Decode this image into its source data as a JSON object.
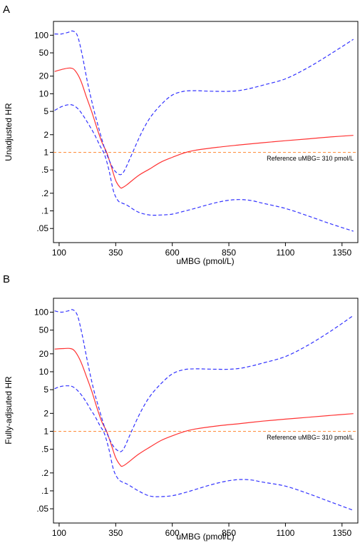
{
  "chart_data": [
    {
      "type": "line",
      "panel_label": "A",
      "xlabel": "uMBG (pmol/L)",
      "ylabel": "Unadjusted HR",
      "y_scale": "log",
      "xlim": [
        75,
        1420
      ],
      "ylim": [
        0.038,
        130
      ],
      "x_ticks": [
        100,
        350,
        600,
        850,
        1100,
        1350
      ],
      "x_tick_labels": [
        "100",
        "350",
        "600",
        "850",
        "1100",
        "1350"
      ],
      "y_ticks": [
        0.05,
        0.1,
        0.2,
        0.5,
        1,
        2,
        5,
        10,
        20,
        50,
        100
      ],
      "y_tick_labels": [
        ".05",
        ".1",
        ".2",
        ".5",
        "1",
        "2",
        "5",
        "10",
        "20",
        "50",
        "100"
      ],
      "reference_line": {
        "y": 1,
        "label": "Reference uMBG= 310 pmol/L",
        "color": "#ff8c3a",
        "style": "dashed"
      },
      "grid": false,
      "series": [
        {
          "role": "estimate",
          "color": "#ff3333",
          "style": "solid",
          "x": [
            80,
            120,
            150,
            170,
            195,
            220,
            245,
            270,
            290,
            310,
            330,
            350,
            370,
            380,
            400,
            450,
            500,
            550,
            600,
            650,
            700,
            800,
            900,
            1000,
            1100,
            1200,
            1300,
            1400
          ],
          "y": [
            24,
            26.5,
            27.5,
            25,
            17,
            9,
            4.8,
            2.4,
            1.45,
            1,
            0.58,
            0.33,
            0.25,
            0.25,
            0.28,
            0.4,
            0.52,
            0.68,
            0.82,
            0.97,
            1.08,
            1.22,
            1.34,
            1.46,
            1.58,
            1.7,
            1.83,
            1.95
          ]
        },
        {
          "role": "upper 95% CI",
          "color": "#3333ff",
          "style": "dashed",
          "x": [
            80,
            110,
            140,
            160,
            180,
            200,
            225,
            250,
            275,
            300,
            320,
            340,
            360,
            375,
            390,
            420,
            460,
            500,
            550,
            600,
            650,
            700,
            750,
            800,
            850,
            900,
            950,
            1000,
            1100,
            1200,
            1300,
            1400
          ],
          "y": [
            105,
            105,
            112,
            118,
            100,
            50,
            16,
            6,
            2.6,
            1.2,
            0.75,
            0.52,
            0.43,
            0.42,
            0.5,
            0.9,
            2,
            3.8,
            6.5,
            9.5,
            11,
            11.3,
            11.1,
            11,
            11,
            11.4,
            12.5,
            14,
            18,
            28,
            48,
            85
          ]
        },
        {
          "role": "lower 95% CI",
          "color": "#3333ff",
          "style": "dashed",
          "x": [
            80,
            110,
            140,
            160,
            180,
            200,
            220,
            240,
            260,
            280,
            300,
            320,
            340,
            360,
            380,
            400,
            450,
            500,
            550,
            600,
            650,
            700,
            750,
            800,
            850,
            900,
            950,
            1000,
            1100,
            1200,
            1300,
            1400
          ],
          "y": [
            5.2,
            6,
            6.5,
            6.4,
            5.7,
            4.6,
            3.5,
            2.6,
            1.9,
            1.3,
            0.93,
            0.5,
            0.22,
            0.15,
            0.135,
            0.125,
            0.095,
            0.085,
            0.085,
            0.088,
            0.098,
            0.11,
            0.125,
            0.14,
            0.152,
            0.156,
            0.15,
            0.135,
            0.11,
            0.082,
            0.06,
            0.045
          ]
        }
      ]
    },
    {
      "type": "line",
      "panel_label": "B",
      "xlabel": "uMBG (pmol/L)",
      "ylabel": "Fully-adjsuted HR",
      "y_scale": "log",
      "xlim": [
        75,
        1420
      ],
      "ylim": [
        0.038,
        130
      ],
      "x_ticks": [
        100,
        350,
        600,
        850,
        1100,
        1350
      ],
      "x_tick_labels": [
        "100",
        "350",
        "600",
        "850",
        "1100",
        "1350"
      ],
      "y_ticks": [
        0.05,
        0.1,
        0.2,
        0.5,
        1,
        2,
        5,
        10,
        20,
        50,
        100
      ],
      "y_tick_labels": [
        ".05",
        ".1",
        ".2",
        ".5",
        "1",
        "2",
        "5",
        "10",
        "20",
        "50",
        "100"
      ],
      "reference_line": {
        "y": 1,
        "label": "Reference uMBG= 310 pmol/L",
        "color": "#ff8c3a",
        "style": "dashed"
      },
      "grid": false,
      "series": [
        {
          "role": "estimate",
          "color": "#ff3333",
          "style": "solid",
          "x": [
            80,
            120,
            150,
            170,
            195,
            220,
            245,
            270,
            290,
            310,
            330,
            350,
            370,
            380,
            400,
            450,
            500,
            550,
            600,
            650,
            700,
            800,
            900,
            1000,
            1100,
            1200,
            1300,
            1400
          ],
          "y": [
            24,
            24.5,
            24.5,
            22,
            15,
            8.5,
            4.6,
            2.3,
            1.4,
            1,
            0.6,
            0.36,
            0.27,
            0.26,
            0.29,
            0.41,
            0.54,
            0.7,
            0.84,
            0.98,
            1.09,
            1.23,
            1.35,
            1.48,
            1.6,
            1.72,
            1.85,
            1.98
          ]
        },
        {
          "role": "upper 95% CI",
          "color": "#3333ff",
          "style": "dashed",
          "x": [
            80,
            110,
            140,
            160,
            180,
            200,
            225,
            250,
            275,
            300,
            320,
            340,
            360,
            375,
            390,
            420,
            460,
            500,
            550,
            600,
            650,
            700,
            750,
            800,
            850,
            900,
            950,
            1000,
            1100,
            1200,
            1300,
            1400
          ],
          "y": [
            105,
            100,
            105,
            110,
            90,
            45,
            15,
            5.5,
            2.5,
            1.2,
            0.78,
            0.56,
            0.47,
            0.46,
            0.55,
            1,
            2.1,
            3.8,
            6.3,
            9.2,
            10.8,
            11.2,
            11.1,
            11,
            11,
            11.4,
            12.5,
            14,
            18,
            28,
            48,
            88
          ]
        },
        {
          "role": "lower 95% CI",
          "color": "#3333ff",
          "style": "dashed",
          "x": [
            80,
            110,
            140,
            160,
            180,
            200,
            220,
            240,
            260,
            280,
            300,
            320,
            340,
            360,
            380,
            400,
            450,
            500,
            550,
            600,
            650,
            700,
            750,
            800,
            850,
            900,
            950,
            1000,
            1100,
            1200,
            1300,
            1400
          ],
          "y": [
            5.2,
            5.7,
            5.8,
            5.6,
            4.9,
            4,
            3.1,
            2.3,
            1.75,
            1.25,
            0.92,
            0.5,
            0.23,
            0.16,
            0.14,
            0.13,
            0.1,
            0.082,
            0.08,
            0.083,
            0.092,
            0.105,
            0.12,
            0.135,
            0.148,
            0.155,
            0.152,
            0.14,
            0.12,
            0.09,
            0.065,
            0.047
          ]
        }
      ]
    }
  ]
}
